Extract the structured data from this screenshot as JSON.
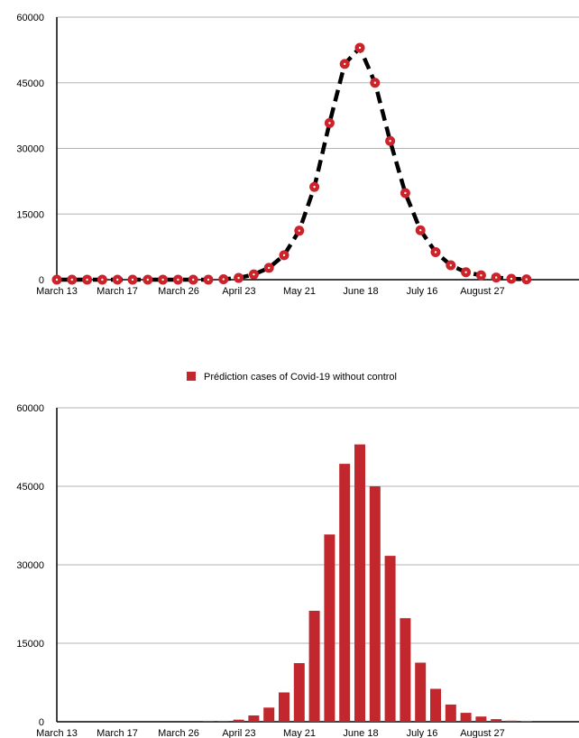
{
  "colors": {
    "marker": "#cc2229",
    "bar": "#c1272d",
    "line": "#000000",
    "grid": "#b3b3b3",
    "axis": "#000000"
  },
  "chart_data": [
    {
      "type": "line",
      "title": "",
      "xlabel": "",
      "ylabel": "",
      "ylim": [
        0,
        60000
      ],
      "yticks": [
        0,
        15000,
        30000,
        45000,
        60000
      ],
      "grid": true,
      "legend": "none",
      "x_tick_labels": [
        "March 13",
        "March 17",
        "March 26",
        "April 23",
        "May 21",
        "June  18",
        "July 16",
        "August 27"
      ],
      "series": [
        {
          "values": [
            0,
            0,
            0,
            0,
            0,
            0,
            0,
            0,
            0,
            0,
            0,
            100,
            400,
            1200,
            2700,
            5600,
            11200,
            21200,
            35800,
            49300,
            53000,
            45000,
            31700,
            19800,
            11300,
            6300,
            3300,
            1700,
            1000,
            500,
            200,
            80
          ]
        }
      ]
    },
    {
      "type": "bar",
      "title": "",
      "xlabel": "",
      "ylabel": "",
      "ylim": [
        0,
        60000
      ],
      "yticks": [
        0,
        15000,
        30000,
        45000,
        60000
      ],
      "grid": true,
      "legend": "top-center",
      "x_tick_labels": [
        "March 13",
        "March 17",
        "March 26",
        "April 23",
        "May 21",
        "June  18",
        "July 16",
        "August 27"
      ],
      "series": [
        {
          "name": "Prédiction cases of Covid-19  without control",
          "values": [
            0,
            0,
            0,
            0,
            0,
            0,
            0,
            0,
            0,
            0,
            50,
            150,
            400,
            1200,
            2700,
            5600,
            11200,
            21200,
            35800,
            49300,
            53000,
            45000,
            31700,
            19800,
            11300,
            6300,
            3300,
            1700,
            1000,
            500,
            200,
            80
          ]
        }
      ]
    }
  ]
}
